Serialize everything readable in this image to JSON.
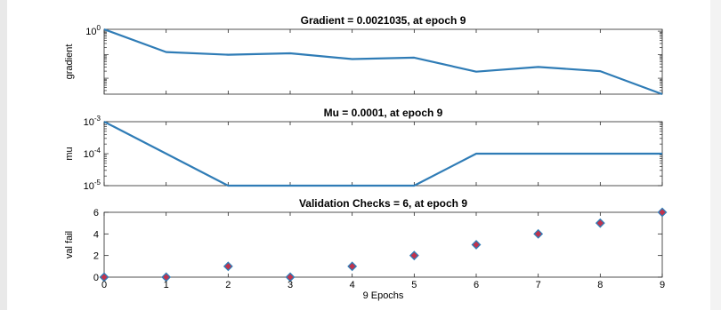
{
  "chart_data": [
    {
      "type": "line",
      "title": "Gradient = 0.0021035, at epoch 9",
      "ylabel": "gradient",
      "yscale": "log",
      "ylim": [
        0.0021035,
        1.2
      ],
      "yticks": [
        {
          "value": 1,
          "base": "10",
          "exp": "0"
        }
      ],
      "x": [
        0,
        1,
        2,
        3,
        4,
        5,
        6,
        7,
        8,
        9
      ],
      "series": [
        {
          "values": [
            1.2,
            0.13,
            0.1,
            0.115,
            0.065,
            0.075,
            0.019,
            0.03,
            0.02,
            0.0021035
          ],
          "color": "#2f7cb6"
        }
      ]
    },
    {
      "type": "line",
      "title": "Mu = 0.0001, at epoch 9",
      "ylabel": "mu",
      "yscale": "log",
      "ylim": [
        1e-05,
        0.001
      ],
      "yticks": [
        {
          "value": 0.001,
          "base": "10",
          "exp": "-3"
        },
        {
          "value": 0.0001,
          "base": "10",
          "exp": "-4"
        },
        {
          "value": 1e-05,
          "base": "10",
          "exp": "-5"
        }
      ],
      "x": [
        0,
        1,
        2,
        3,
        4,
        5,
        6,
        7,
        8,
        9
      ],
      "series": [
        {
          "values": [
            0.001,
            0.0001,
            1e-05,
            1e-05,
            1e-05,
            1e-05,
            0.0001,
            0.0001,
            0.0001,
            0.0001
          ],
          "color": "#2f7cb6"
        }
      ]
    },
    {
      "type": "scatter",
      "title": "Validation Checks = 6, at epoch 9",
      "ylabel": "val fail",
      "xlabel": "9 Epochs",
      "ylim": [
        0,
        6
      ],
      "yticks": [
        0,
        2,
        4,
        6
      ],
      "xticks": [
        0,
        1,
        2,
        3,
        4,
        5,
        6,
        7,
        8,
        9
      ],
      "x": [
        0,
        1,
        2,
        3,
        4,
        5,
        6,
        7,
        8,
        9
      ],
      "series": [
        {
          "values": [
            0,
            0,
            1,
            0,
            1,
            2,
            3,
            4,
            5,
            6
          ],
          "color": "#2f7cb6",
          "marker_fill": "#c0334d"
        }
      ]
    }
  ]
}
